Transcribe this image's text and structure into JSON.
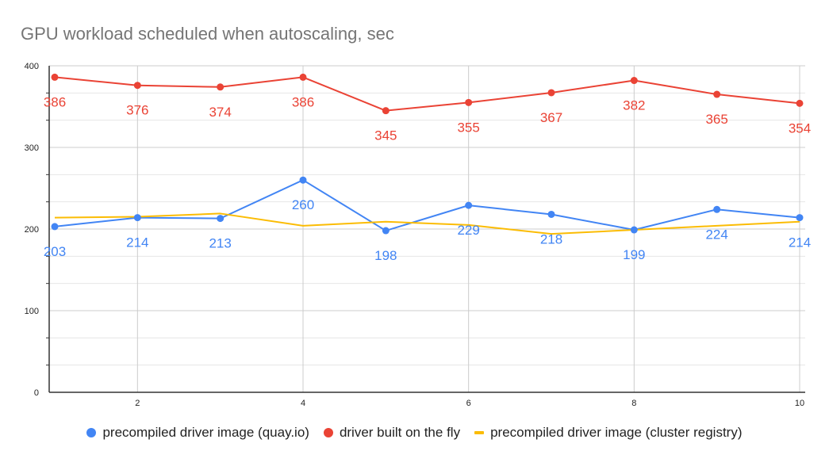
{
  "chart_data": {
    "type": "line",
    "title": "GPU workload scheduled when autoscaling, sec",
    "xlabel": "",
    "ylabel": "",
    "x": [
      1,
      2,
      3,
      4,
      5,
      6,
      7,
      8,
      9,
      10
    ],
    "x_ticks": [
      2,
      4,
      6,
      8,
      10
    ],
    "y_ticks": [
      0,
      100,
      200,
      300,
      400
    ],
    "ylim": [
      0,
      400
    ],
    "xlim": [
      1,
      10
    ],
    "grid": true,
    "legend_position": "bottom",
    "series": [
      {
        "name": "precompiled driver image (quay.io)",
        "color": "#4285F4",
        "marker": "circle",
        "data_labels": true,
        "values": [
          203,
          214,
          213,
          260,
          198,
          229,
          218,
          199,
          224,
          214
        ]
      },
      {
        "name": "driver built on the fly",
        "color": "#EA4335",
        "marker": "circle",
        "data_labels": true,
        "values": [
          386,
          376,
          374,
          386,
          345,
          355,
          367,
          382,
          365,
          354
        ]
      },
      {
        "name": "precompiled driver image (cluster registry)",
        "color": "#FBBC04",
        "marker": "none",
        "data_labels": false,
        "values": [
          214,
          215,
          219,
          204,
          209,
          205,
          194,
          199,
          204,
          209
        ]
      }
    ]
  },
  "legend": {
    "items": [
      {
        "label": "precompiled driver image (quay.io)",
        "color": "#4285F4",
        "shape": "dot"
      },
      {
        "label": "driver built on the fly",
        "color": "#EA4335",
        "shape": "dot"
      },
      {
        "label": "precompiled driver image (cluster registry)",
        "color": "#FBBC04",
        "shape": "line"
      }
    ]
  }
}
